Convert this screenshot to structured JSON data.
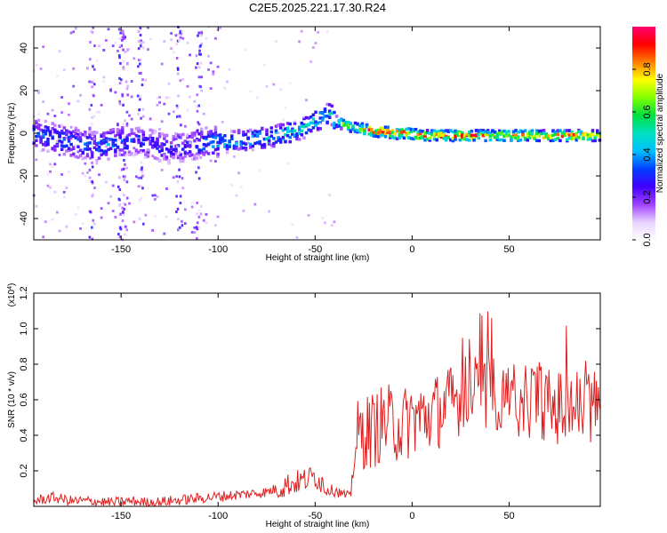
{
  "title": "C2E5.2025.221.17.30.R24",
  "chart_data": [
    {
      "type": "heatmap",
      "xlabel": "Height of straight line (km)",
      "ylabel": "Frequency (Hz)",
      "xlim": [
        -195,
        97
      ],
      "ylim": [
        -50,
        50
      ],
      "xticks": [
        -150,
        -100,
        -50,
        0,
        50
      ],
      "yticks": [
        -40,
        -20,
        0,
        20,
        40
      ],
      "grid": false,
      "colormap": {
        "label": "Normalized spectral amplitude",
        "range": [
          0.0,
          1.0
        ],
        "ticks": [
          "0.0",
          "0.2",
          "0.4",
          "0.6",
          "0.8"
        ],
        "colors": [
          "#ffffff",
          "#e8d2ff",
          "#a040ff",
          "#4000ff",
          "#0040ff",
          "#00c0ff",
          "#00e0c0",
          "#00e040",
          "#80ff00",
          "#ffff00",
          "#ff8000",
          "#ff0000",
          "#ff0070"
        ]
      },
      "ridge": {
        "x": [
          -195,
          -185,
          -175,
          -165,
          -155,
          -145,
          -135,
          -125,
          -115,
          -105,
          -95,
          -85,
          -75,
          -65,
          -55,
          -50,
          -45,
          -42,
          -40,
          -35,
          -30,
          -25,
          -20,
          -15,
          -10,
          -5,
          0,
          5,
          10,
          20,
          30,
          40,
          50,
          60,
          70,
          80,
          90,
          97
        ],
        "y": [
          0,
          -2,
          -4,
          -6,
          -5,
          -3,
          -5,
          -7,
          -6,
          -4,
          -4,
          -3,
          -2,
          0,
          3,
          6,
          8,
          10,
          6,
          4,
          3,
          2,
          1,
          1,
          0,
          0,
          0,
          -1,
          -1,
          -1,
          -1,
          -1,
          -1,
          -1,
          -1,
          -1,
          -1,
          -1
        ],
        "amplitude": [
          0.35,
          0.35,
          0.35,
          0.35,
          0.4,
          0.35,
          0.3,
          0.3,
          0.3,
          0.4,
          0.45,
          0.45,
          0.45,
          0.5,
          0.5,
          0.5,
          0.5,
          0.45,
          0.55,
          0.7,
          0.75,
          0.85,
          0.95,
          0.95,
          0.95,
          0.9,
          0.9,
          0.9,
          0.9,
          0.9,
          0.9,
          0.85,
          0.85,
          0.85,
          0.85,
          0.85,
          0.85,
          0.85
        ]
      }
    },
    {
      "type": "line",
      "xlabel": "Height of straight line (km)",
      "ylabel": "SNR (10 * v/v)",
      "scale_label": "(x10",
      "scale_exponent": "4",
      "xlim": [
        -195,
        97
      ],
      "ylim": [
        0,
        1.2
      ],
      "xticks": [
        -150,
        -100,
        -50,
        0,
        50
      ],
      "yticks": [
        "0.2",
        "0.4",
        "0.6",
        "0.8",
        "1.0",
        "1.2"
      ],
      "grid": false,
      "series": [
        {
          "color": "#e02020",
          "x": [
            -195,
            -185,
            -175,
            -165,
            -155,
            -145,
            -135,
            -125,
            -115,
            -105,
            -95,
            -85,
            -75,
            -65,
            -55,
            -50,
            -45,
            -42,
            -40,
            -38,
            -36,
            -34,
            -32,
            -30,
            -28,
            -25,
            -20,
            -15,
            -10,
            -5,
            0,
            5,
            10,
            15,
            20,
            25,
            30,
            35,
            40,
            45,
            50,
            52,
            54,
            56,
            58,
            60,
            65,
            70,
            75,
            80,
            85,
            90,
            97
          ],
          "y": [
            0.03,
            0.05,
            0.03,
            0.03,
            0.02,
            0.03,
            0.02,
            0.03,
            0.04,
            0.05,
            0.06,
            0.07,
            0.08,
            0.12,
            0.15,
            0.17,
            0.12,
            0.09,
            0.1,
            0.08,
            0.07,
            0.06,
            0.05,
            0.25,
            0.38,
            0.42,
            0.43,
            0.47,
            0.47,
            0.45,
            0.5,
            0.5,
            0.52,
            0.55,
            0.58,
            0.62,
            0.65,
            0.62,
            0.62,
            0.64,
            0.7,
            0.72,
            0.62,
            0.55,
            0.6,
            0.6,
            0.62,
            0.56,
            0.55,
            0.55,
            0.56,
            0.54,
            0.58
          ]
        }
      ]
    }
  ]
}
